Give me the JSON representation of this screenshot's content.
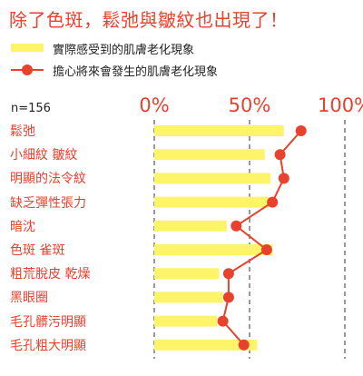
{
  "title": "除了色斑，鬆弛與皺紋也出現了！",
  "legend": {
    "bar_label": "實際感受到的肌膚老化現象",
    "line_label": "擔心將來會發生的肌膚老化現象"
  },
  "n_label": "n=156",
  "colors": {
    "accent": "#e8412e",
    "bar": "#fef46a",
    "grid": "#555555"
  },
  "chart_data": {
    "type": "bar",
    "orientation": "horizontal",
    "categories": [
      "鬆弛",
      "小細紋 皺紋",
      "明顯的法令紋",
      "缺乏彈性張力",
      "暗沈",
      "色斑 雀斑",
      "粗荒脫皮 乾燥",
      "黑眼圈",
      "毛孔髒污明顯",
      "毛孔粗大明顯"
    ],
    "series": [
      {
        "name": "實際感受到的肌膚老化現象",
        "type": "bar",
        "values": [
          68,
          58,
          61,
          60,
          38,
          62,
          34,
          36,
          33,
          54
        ]
      },
      {
        "name": "擔心將來會發生的肌膚老化現象",
        "type": "line",
        "values": [
          77,
          66,
          68,
          62,
          43,
          59,
          39,
          39,
          36,
          47
        ]
      }
    ],
    "xlim": [
      0,
      100
    ],
    "tick_labels": [
      "0%",
      "50%",
      "100%"
    ],
    "grid": true,
    "legend_position": "top-left"
  }
}
